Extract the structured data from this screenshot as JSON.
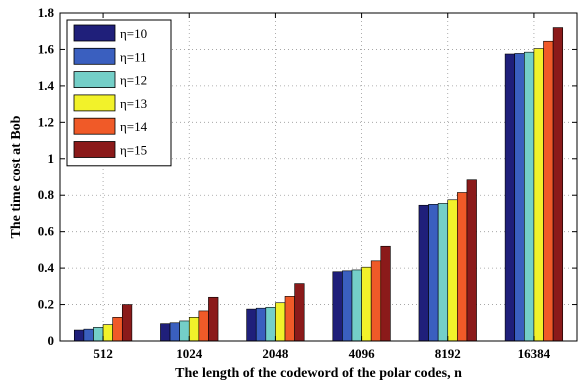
{
  "chart_data": {
    "type": "bar",
    "xlabel": "The length of the codeword of the polar codes, n",
    "ylabel": "The time cost at Bob",
    "ylim": [
      0,
      1.8
    ],
    "yticks": [
      "0",
      "0.2",
      "0.4",
      "0.6",
      "0.8",
      "1",
      "1.2",
      "1.4",
      "1.6",
      "1.8"
    ],
    "grid": true,
    "legend_position": "top-left",
    "categories": [
      "512",
      "1024",
      "2048",
      "4096",
      "8192",
      "16384"
    ],
    "series": [
      {
        "name": "η=10",
        "color": "#1f1f7a",
        "values": [
          0.06,
          0.095,
          0.175,
          0.38,
          0.745,
          1.575
        ]
      },
      {
        "name": "η=11",
        "color": "#3a5fbf",
        "values": [
          0.065,
          0.1,
          0.18,
          0.385,
          0.75,
          1.578
        ]
      },
      {
        "name": "η=12",
        "color": "#74cfc8",
        "values": [
          0.075,
          0.11,
          0.185,
          0.39,
          0.755,
          1.585
        ]
      },
      {
        "name": "η=13",
        "color": "#f2f22a",
        "values": [
          0.09,
          0.13,
          0.21,
          0.405,
          0.775,
          1.605
        ]
      },
      {
        "name": "η=14",
        "color": "#f05a28",
        "values": [
          0.13,
          0.165,
          0.245,
          0.44,
          0.815,
          1.645
        ]
      },
      {
        "name": "η=15",
        "color": "#8b1a1a",
        "values": [
          0.2,
          0.24,
          0.315,
          0.52,
          0.885,
          1.72
        ]
      }
    ]
  }
}
